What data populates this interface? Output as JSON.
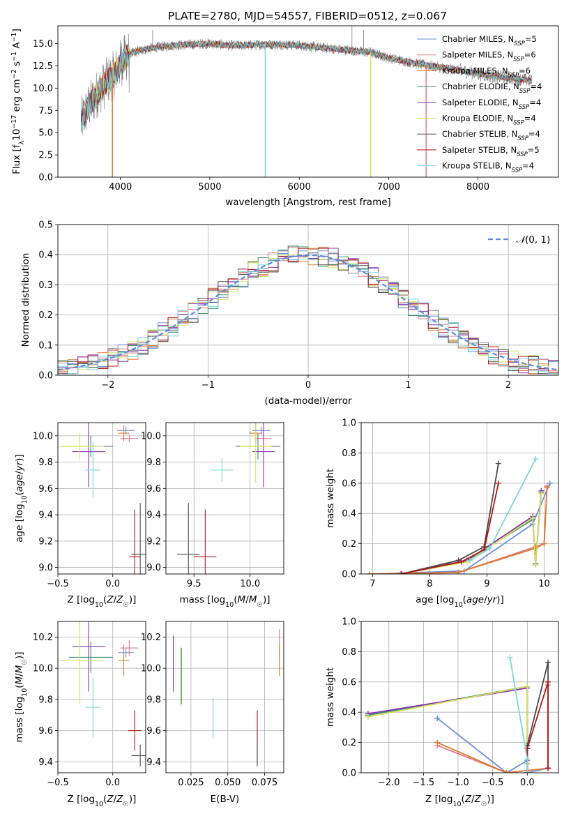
{
  "figure_title": "PLATE=2780, MJD=54557, FIBERID=0512, z=0.067",
  "colors": {
    "chabrier_miles": "#6a8fd8",
    "salpeter_miles": "#e07a8c",
    "kroupa_miles": "#e07a2e",
    "chabrier_elodie": "#3c8a7a",
    "salpeter_elodie": "#8a2fb0",
    "kroupa_elodie": "#d4e25a",
    "chabrier_stelib": "#4a4a4a",
    "salpeter_stelib": "#b01818",
    "kroupa_stelib": "#7ad6dc",
    "data": "#7f7f7f",
    "grid": "#b0b0b0",
    "gaussian": "#5b8bd8"
  },
  "chart_data": [
    {
      "id": "spectrum",
      "type": "line",
      "xlabel": "wavelength [Angstrom, rest frame]",
      "ylabel": "Flux [f_λ10^-17 erg cm^-2 s^-1 A^-1]",
      "xlim": [
        3300,
        8900
      ],
      "ylim": [
        0,
        17
      ],
      "xticks": [
        4000,
        5000,
        6000,
        7000,
        8000
      ],
      "yticks": [
        0.0,
        2.5,
        5.0,
        7.5,
        10.0,
        12.5,
        15.0
      ],
      "grid": false,
      "legend_position": "top-right",
      "continuum": {
        "x": [
          3560,
          3650,
          3750,
          3850,
          3930,
          4000,
          4100,
          4200,
          4400,
          4600,
          4800,
          5000,
          5200,
          5400,
          5600,
          5800,
          6000,
          6200,
          6400,
          6600,
          6800,
          7000,
          7200,
          7400,
          7600,
          7800,
          8000,
          8200,
          8400,
          8600
        ],
        "y": [
          6.3,
          8.0,
          9.5,
          10.8,
          11.5,
          12.8,
          13.8,
          14.2,
          14.6,
          14.8,
          14.9,
          15.0,
          14.8,
          14.8,
          14.9,
          14.9,
          14.8,
          14.6,
          14.4,
          14.2,
          14.0,
          13.4,
          13.0,
          12.6,
          12.3,
          12.0,
          11.6,
          11.3,
          11.1,
          10.8
        ]
      },
      "series": [
        {
          "name": "Chabrier MILES, N_SSP=5",
          "key": "chabrier_miles"
        },
        {
          "name": "Salpeter MILES, N_SSP=6",
          "key": "salpeter_miles"
        },
        {
          "name": "Kroupa MILES, N_SSP=6",
          "key": "kroupa_miles"
        },
        {
          "name": "Chabrier ELODIE, N_SSP=4",
          "key": "chabrier_elodie"
        },
        {
          "name": "Salpeter ELODIE, N_SSP=4",
          "key": "salpeter_elodie"
        },
        {
          "name": "Kroupa ELODIE, N_SSP=4",
          "key": "kroupa_elodie"
        },
        {
          "name": "Chabrier STELIB, N_SSP=4",
          "key": "chabrier_stelib"
        },
        {
          "name": "Salpeter STELIB, N_SSP=5",
          "key": "salpeter_stelib"
        },
        {
          "name": "Kroupa STELIB, N_SSP=4",
          "key": "kroupa_stelib"
        }
      ],
      "gaps": [
        {
          "x": 3910,
          "key": "kroupa_miles"
        },
        {
          "x": 5620,
          "key": "kroupa_stelib"
        },
        {
          "x": 6800,
          "key": "kroupa_elodie"
        },
        {
          "x": 7420,
          "key": "salpeter_miles"
        }
      ]
    },
    {
      "id": "residuals",
      "type": "histogram",
      "xlabel": "(data-model)/error",
      "ylabel": "Normed distribution",
      "xlim": [
        -2.5,
        2.5
      ],
      "ylim": [
        0,
        0.5
      ],
      "xticks": [
        -2,
        -1,
        0,
        1,
        2
      ],
      "xtick_labels": [
        "−2",
        "−1",
        "0",
        "1",
        "2"
      ],
      "yticks": [
        0.0,
        0.1,
        0.2,
        0.3,
        0.4,
        0.5
      ],
      "grid": true,
      "legend_position": "top-right",
      "gaussian": {
        "name": "N(0,1)",
        "mean": 0,
        "sigma": 1
      },
      "bin_width": 0.1,
      "bin_start": -2.5
    },
    {
      "id": "age_vs_Z",
      "type": "errorbar",
      "xlabel": "Z [log10(Z/Z☉)]",
      "ylabel": "age [log10(age/yr)]",
      "xlim": [
        -0.5,
        0.3
      ],
      "ylim": [
        8.95,
        10.1
      ],
      "xticks": [
        -0.5,
        0.0
      ],
      "xtick_labels": [
        "−0.5",
        "0.0"
      ],
      "yticks": [
        9.0,
        9.2,
        9.4,
        9.6,
        9.8,
        10.0
      ],
      "grid": true,
      "points": [
        {
          "key": "chabrier_miles",
          "x": 0.12,
          "y": 10.04,
          "xerr": 0.08,
          "yerr": 0.03
        },
        {
          "key": "salpeter_miles",
          "x": 0.15,
          "y": 9.98,
          "xerr": 0.08,
          "yerr": 0.03
        },
        {
          "key": "kroupa_miles",
          "x": 0.1,
          "y": 10.02,
          "xerr": 0.05,
          "yerr": 0.06
        },
        {
          "key": "chabrier_elodie",
          "x": -0.2,
          "y": 9.92,
          "xerr": 0.2,
          "yerr": 0.08
        },
        {
          "key": "salpeter_elodie",
          "x": -0.22,
          "y": 9.88,
          "xerr": 0.15,
          "yerr": 0.27
        },
        {
          "key": "kroupa_elodie",
          "x": -0.3,
          "y": 9.92,
          "xerr": 0.22,
          "yerr": 0.1
        },
        {
          "key": "chabrier_stelib",
          "x": 0.25,
          "y": 9.1,
          "xerr": 0.08,
          "yerr": 0.39
        },
        {
          "key": "salpeter_stelib",
          "x": 0.2,
          "y": 9.08,
          "xerr": 0.05,
          "yerr": 0.36
        },
        {
          "key": "kroupa_stelib",
          "x": -0.18,
          "y": 9.74,
          "xerr": 0.07,
          "yerr": 0.21
        }
      ]
    },
    {
      "id": "age_vs_mass",
      "type": "errorbar",
      "xlabel": "mass [log10(M/M☉)]",
      "ylabel": "",
      "xlim": [
        9.25,
        10.3
      ],
      "ylim": [
        8.95,
        10.1
      ],
      "xticks": [
        9.5,
        10.0
      ],
      "xtick_labels": [
        "9.5",
        "10.0"
      ],
      "yticks": [
        9.0,
        9.2,
        9.4,
        9.6,
        9.8,
        10.0
      ],
      "grid": true,
      "points": [
        {
          "key": "chabrier_miles",
          "x": 10.1,
          "y": 10.04,
          "xerr": 0.08,
          "yerr": 0.03
        },
        {
          "key": "salpeter_miles",
          "x": 10.12,
          "y": 9.98,
          "xerr": 0.07,
          "yerr": 0.05
        },
        {
          "key": "kroupa_miles",
          "x": 10.05,
          "y": 10.02,
          "xerr": 0.06,
          "yerr": 0.08
        },
        {
          "key": "chabrier_elodie",
          "x": 10.07,
          "y": 9.92,
          "xerr": 0.2,
          "yerr": 0.1
        },
        {
          "key": "salpeter_elodie",
          "x": 10.12,
          "y": 9.88,
          "xerr": 0.1,
          "yerr": 0.27
        },
        {
          "key": "kroupa_elodie",
          "x": 10.05,
          "y": 9.92,
          "xerr": 0.14,
          "yerr": 0.28
        },
        {
          "key": "chabrier_stelib",
          "x": 9.45,
          "y": 9.1,
          "xerr": 0.1,
          "yerr": 0.39
        },
        {
          "key": "salpeter_stelib",
          "x": 9.6,
          "y": 9.08,
          "xerr": 0.1,
          "yerr": 0.36
        },
        {
          "key": "kroupa_stelib",
          "x": 9.75,
          "y": 9.74,
          "xerr": 0.1,
          "yerr": 0.09
        }
      ]
    },
    {
      "id": "weight_vs_age",
      "type": "line",
      "xlabel": "age [log10(age/yr)]",
      "ylabel": "mass weight",
      "xlim": [
        6.8,
        10.25
      ],
      "ylim": [
        0,
        1
      ],
      "xticks": [
        7,
        8,
        9,
        10
      ],
      "yticks": [
        0.0,
        0.2,
        0.4,
        0.6,
        0.8,
        1.0
      ],
      "grid": true,
      "series": [
        {
          "key": "chabrier_miles",
          "x": [
            6.95,
            8.6,
            9.8,
            10.1
          ],
          "y": [
            0.0,
            0.02,
            0.33,
            0.6
          ]
        },
        {
          "key": "salpeter_miles",
          "x": [
            6.95,
            8.5,
            9.85,
            10.0,
            10.05
          ],
          "y": [
            0.0,
            0.01,
            0.18,
            0.2,
            0.58
          ]
        },
        {
          "key": "kroupa_miles",
          "x": [
            6.95,
            8.5,
            9.85,
            10.0,
            10.05
          ],
          "y": [
            0.0,
            0.01,
            0.17,
            0.2,
            0.57
          ]
        },
        {
          "key": "chabrier_elodie",
          "x": [
            7.5,
            8.65,
            9.8,
            9.85,
            9.95
          ],
          "y": [
            0.0,
            0.09,
            0.36,
            0.07,
            0.54
          ]
        },
        {
          "key": "salpeter_elodie",
          "x": [
            7.5,
            8.65,
            9.8,
            9.85,
            9.95
          ],
          "y": [
            0.0,
            0.09,
            0.38,
            0.06,
            0.55
          ]
        },
        {
          "key": "kroupa_elodie",
          "x": [
            7.5,
            8.65,
            9.8,
            9.85,
            9.95
          ],
          "y": [
            0.0,
            0.08,
            0.37,
            0.06,
            0.53
          ]
        },
        {
          "key": "chabrier_stelib",
          "x": [
            7.5,
            8.5,
            8.95,
            9.2
          ],
          "y": [
            0.0,
            0.09,
            0.18,
            0.73
          ]
        },
        {
          "key": "salpeter_stelib",
          "x": [
            7.5,
            8.55,
            8.95,
            9.2
          ],
          "y": [
            0.0,
            0.08,
            0.16,
            0.6
          ]
        },
        {
          "key": "kroupa_stelib",
          "x": [
            8.7,
            9.05,
            9.85
          ],
          "y": [
            0.09,
            0.17,
            0.76
          ]
        }
      ]
    },
    {
      "id": "mass_vs_Z",
      "type": "errorbar",
      "xlabel": "Z [log10(Z/Z☉)]",
      "ylabel": "mass [log10(M/M☉)]",
      "xlim": [
        -0.5,
        0.3
      ],
      "ylim": [
        9.33,
        10.3
      ],
      "xticks": [
        -0.5,
        0.0
      ],
      "xtick_labels": [
        "−0.5",
        "0.0"
      ],
      "yticks": [
        9.4,
        9.6,
        9.8,
        10.0,
        10.2
      ],
      "grid": true,
      "points": [
        {
          "key": "chabrier_miles",
          "x": 0.12,
          "y": 10.1,
          "xerr": 0.07,
          "yerr": 0.03
        },
        {
          "key": "salpeter_miles",
          "x": 0.15,
          "y": 10.13,
          "xerr": 0.08,
          "yerr": 0.05
        },
        {
          "key": "kroupa_miles",
          "x": 0.1,
          "y": 10.05,
          "xerr": 0.05,
          "yerr": 0.1
        },
        {
          "key": "chabrier_elodie",
          "x": -0.2,
          "y": 10.07,
          "xerr": 0.2,
          "yerr": 0.1
        },
        {
          "key": "salpeter_elodie",
          "x": -0.22,
          "y": 10.14,
          "xerr": 0.15,
          "yerr": 0.29
        },
        {
          "key": "kroupa_elodie",
          "x": -0.3,
          "y": 10.05,
          "xerr": 0.22,
          "yerr": 0.28
        },
        {
          "key": "chabrier_stelib",
          "x": 0.25,
          "y": 9.44,
          "xerr": 0.08,
          "yerr": 0.07
        },
        {
          "key": "salpeter_stelib",
          "x": 0.2,
          "y": 9.6,
          "xerr": 0.06,
          "yerr": 0.13
        },
        {
          "key": "kroupa_stelib",
          "x": -0.18,
          "y": 9.75,
          "xerr": 0.07,
          "yerr": 0.19
        }
      ]
    },
    {
      "id": "mass_vs_ebv",
      "type": "errorbar",
      "xlabel": "E(B-V)",
      "ylabel": "",
      "xlim": [
        0.008,
        0.088
      ],
      "ylim": [
        9.33,
        10.3
      ],
      "xticks": [
        0.025,
        0.05,
        0.075
      ],
      "xtick_labels": [
        "0.025",
        "0.050",
        "0.075"
      ],
      "yticks": [
        9.4,
        9.6,
        9.8,
        10.0,
        10.2
      ],
      "grid": true,
      "points": [
        {
          "key": "salpeter_elodie",
          "x": 0.013,
          "y": 10.03,
          "xerr": 0.0,
          "yerr": 0.18
        },
        {
          "key": "kroupa_elodie",
          "x": 0.018,
          "y": 9.95,
          "xerr": 0.0,
          "yerr": 0.19
        },
        {
          "key": "chabrier_elodie",
          "x": 0.0185,
          "y": 9.95,
          "xerr": 0.0,
          "yerr": 0.18
        },
        {
          "key": "kroupa_stelib",
          "x": 0.04,
          "y": 9.68,
          "xerr": 0.0,
          "yerr": 0.13
        },
        {
          "key": "salpeter_stelib",
          "x": 0.07,
          "y": 9.56,
          "xerr": 0.0,
          "yerr": 0.17
        },
        {
          "key": "chabrier_stelib",
          "x": 0.07,
          "y": 9.45,
          "xerr": 0.0,
          "yerr": 0.08
        },
        {
          "key": "salpeter_miles",
          "x": 0.085,
          "y": 10.15,
          "xerr": 0.0,
          "yerr": 0.1
        },
        {
          "key": "kroupa_miles",
          "x": 0.085,
          "y": 10.05,
          "xerr": 0.0,
          "yerr": 0.1
        }
      ]
    },
    {
      "id": "weight_vs_Z",
      "type": "line",
      "xlabel": "Z [log10(Z/Z☉)]",
      "ylabel": "mass weight",
      "xlim": [
        -2.4,
        0.45
      ],
      "ylim": [
        0,
        1
      ],
      "xticks": [
        -2.0,
        -1.5,
        -1.0,
        -0.5,
        0.0
      ],
      "xtick_labels": [
        "−2.0",
        "−1.5",
        "−1.0",
        "−0.5",
        "0.0"
      ],
      "yticks": [
        0.0,
        0.2,
        0.4,
        0.6,
        0.8,
        1.0
      ],
      "grid": true,
      "series": [
        {
          "key": "chabrier_miles",
          "x": [
            -1.3,
            -0.3,
            0.0,
            0.0,
            0.3,
            0.3
          ],
          "y": [
            0.36,
            0.0,
            0.08,
            0.0,
            0.03,
            0.6
          ]
        },
        {
          "key": "salpeter_miles",
          "x": [
            -1.3,
            -0.3,
            0.3,
            0.3
          ],
          "y": [
            0.18,
            0.0,
            0.03,
            0.58
          ]
        },
        {
          "key": "kroupa_miles",
          "x": [
            -1.3,
            -0.3,
            0.3,
            0.3
          ],
          "y": [
            0.2,
            0.0,
            0.03,
            0.58
          ]
        },
        {
          "key": "chabrier_elodie",
          "x": [
            -2.3,
            0.0,
            0.0
          ],
          "y": [
            0.38,
            0.57,
            0.06
          ]
        },
        {
          "key": "salpeter_elodie",
          "x": [
            -2.3,
            0.0,
            0.0
          ],
          "y": [
            0.39,
            0.56,
            0.06
          ]
        },
        {
          "key": "kroupa_elodie",
          "x": [
            -2.3,
            0.0,
            0.0
          ],
          "y": [
            0.37,
            0.57,
            0.06
          ]
        },
        {
          "key": "chabrier_stelib",
          "x": [
            0.0,
            0.0,
            0.3,
            0.3
          ],
          "y": [
            0.0,
            0.18,
            0.73,
            0.03
          ]
        },
        {
          "key": "salpeter_stelib",
          "x": [
            0.0,
            0.0,
            0.3,
            0.3
          ],
          "y": [
            0.0,
            0.16,
            0.6,
            0.03
          ]
        },
        {
          "key": "kroupa_stelib",
          "x": [
            -0.25,
            0.0,
            0.0
          ],
          "y": [
            0.76,
            0.09,
            0.0
          ]
        }
      ]
    }
  ]
}
